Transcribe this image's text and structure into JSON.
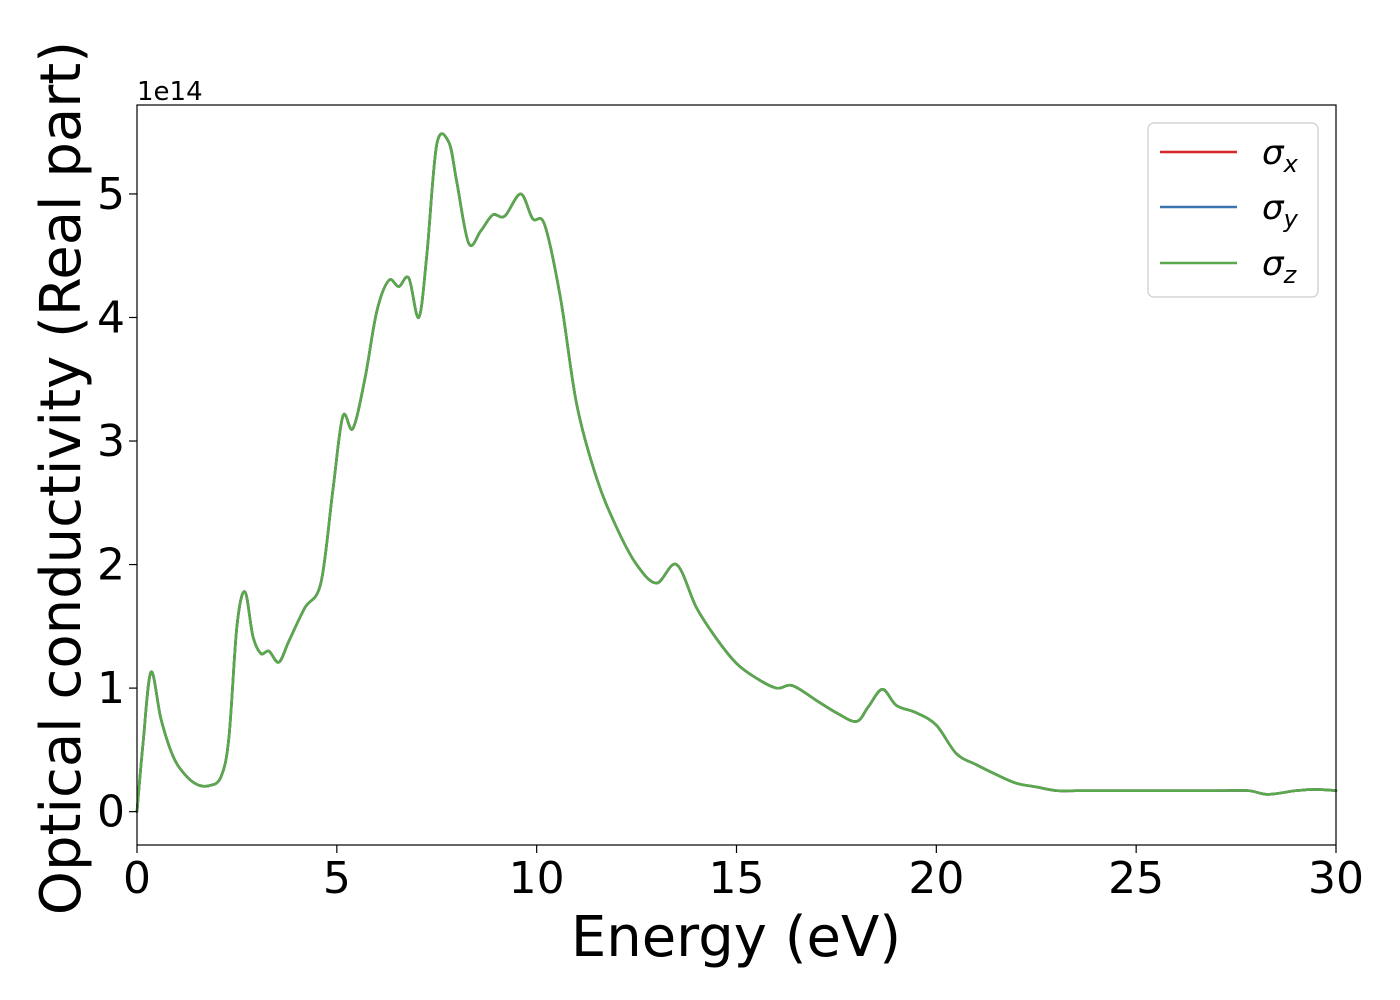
{
  "chart_data": {
    "type": "line",
    "title": "",
    "xlabel": "Energy (eV)",
    "ylabel": "Optical conductivity (Real part)",
    "offset_label": "1e14",
    "y_multiplier": 100000000000000.0,
    "xlim": [
      0,
      30
    ],
    "ylim": [
      -0.27,
      5.72
    ],
    "xticks": [
      0,
      5,
      10,
      15,
      20,
      25,
      30
    ],
    "xtick_labels": [
      "0",
      "5",
      "10",
      "15",
      "20",
      "25",
      "30"
    ],
    "yticks": [
      0,
      1,
      2,
      3,
      4,
      5
    ],
    "ytick_labels": [
      "0",
      "1",
      "2",
      "3",
      "4",
      "5"
    ],
    "grid": false,
    "legend_position": "top-right",
    "legend": [
      {
        "base": "σ",
        "sub": "x",
        "color": "#d62728"
      },
      {
        "base": "σ",
        "sub": "y",
        "color": "#3b75af"
      },
      {
        "base": "σ",
        "sub": "z",
        "color": "#59a84b"
      }
    ],
    "x": [
      0,
      0.15,
      0.35,
      0.6,
      0.9,
      1.2,
      1.5,
      1.8,
      2.1,
      2.3,
      2.5,
      2.7,
      2.9,
      3.1,
      3.3,
      3.55,
      3.8,
      4.2,
      4.6,
      4.9,
      5.15,
      5.4,
      5.7,
      6.0,
      6.3,
      6.55,
      6.8,
      7.05,
      7.25,
      7.5,
      7.8,
      8.0,
      8.3,
      8.6,
      8.9,
      9.2,
      9.6,
      9.9,
      10.2,
      10.6,
      11.0,
      11.5,
      12.0,
      12.5,
      13.0,
      13.5,
      14.0,
      14.5,
      15.0,
      15.5,
      16.0,
      16.4,
      17.0,
      17.5,
      18.0,
      18.3,
      18.65,
      19.0,
      19.5,
      20.0,
      20.5,
      21.0,
      21.5,
      22.0,
      22.5,
      23.0,
      23.5,
      24.0,
      25.0,
      26.0,
      27.0,
      27.8,
      28.3,
      29.0,
      29.5,
      30.0
    ],
    "series": [
      {
        "name": "σx",
        "color": "#d62728",
        "values": [
          0,
          0.55,
          1.13,
          0.75,
          0.45,
          0.3,
          0.22,
          0.21,
          0.28,
          0.6,
          1.5,
          1.78,
          1.42,
          1.28,
          1.3,
          1.21,
          1.38,
          1.65,
          1.85,
          2.6,
          3.2,
          3.1,
          3.5,
          4.05,
          4.3,
          4.25,
          4.32,
          4.0,
          4.5,
          5.4,
          5.42,
          5.1,
          4.6,
          4.7,
          4.83,
          4.82,
          5.0,
          4.8,
          4.75,
          4.15,
          3.3,
          2.7,
          2.3,
          2.0,
          1.85,
          2.0,
          1.65,
          1.4,
          1.2,
          1.08,
          1.0,
          1.02,
          0.9,
          0.8,
          0.73,
          0.85,
          0.99,
          0.86,
          0.8,
          0.7,
          0.47,
          0.38,
          0.3,
          0.23,
          0.2,
          0.17,
          0.17,
          0.17,
          0.17,
          0.17,
          0.17,
          0.17,
          0.14,
          0.17,
          0.18,
          0.17
        ]
      },
      {
        "name": "σy",
        "color": "#3b75af",
        "values": [
          0,
          0.55,
          1.13,
          0.75,
          0.45,
          0.3,
          0.22,
          0.21,
          0.28,
          0.6,
          1.5,
          1.78,
          1.42,
          1.28,
          1.3,
          1.21,
          1.38,
          1.65,
          1.85,
          2.6,
          3.2,
          3.1,
          3.5,
          4.05,
          4.3,
          4.25,
          4.32,
          4.0,
          4.5,
          5.4,
          5.42,
          5.1,
          4.6,
          4.7,
          4.83,
          4.82,
          5.0,
          4.8,
          4.75,
          4.15,
          3.3,
          2.7,
          2.3,
          2.0,
          1.85,
          2.0,
          1.65,
          1.4,
          1.2,
          1.08,
          1.0,
          1.02,
          0.9,
          0.8,
          0.73,
          0.85,
          0.99,
          0.86,
          0.8,
          0.7,
          0.47,
          0.38,
          0.3,
          0.23,
          0.2,
          0.17,
          0.17,
          0.17,
          0.17,
          0.17,
          0.17,
          0.17,
          0.14,
          0.17,
          0.18,
          0.17
        ]
      },
      {
        "name": "σz",
        "color": "#59a84b",
        "values": [
          0,
          0.55,
          1.13,
          0.75,
          0.45,
          0.3,
          0.22,
          0.21,
          0.28,
          0.6,
          1.5,
          1.78,
          1.42,
          1.28,
          1.3,
          1.21,
          1.38,
          1.65,
          1.85,
          2.6,
          3.2,
          3.1,
          3.5,
          4.05,
          4.3,
          4.25,
          4.32,
          4.0,
          4.5,
          5.4,
          5.42,
          5.1,
          4.6,
          4.7,
          4.83,
          4.82,
          5.0,
          4.8,
          4.75,
          4.15,
          3.3,
          2.7,
          2.3,
          2.0,
          1.85,
          2.0,
          1.65,
          1.4,
          1.2,
          1.08,
          1.0,
          1.02,
          0.9,
          0.8,
          0.73,
          0.85,
          0.99,
          0.86,
          0.8,
          0.7,
          0.47,
          0.38,
          0.3,
          0.23,
          0.2,
          0.17,
          0.17,
          0.17,
          0.17,
          0.17,
          0.17,
          0.17,
          0.14,
          0.17,
          0.18,
          0.17
        ]
      }
    ]
  }
}
